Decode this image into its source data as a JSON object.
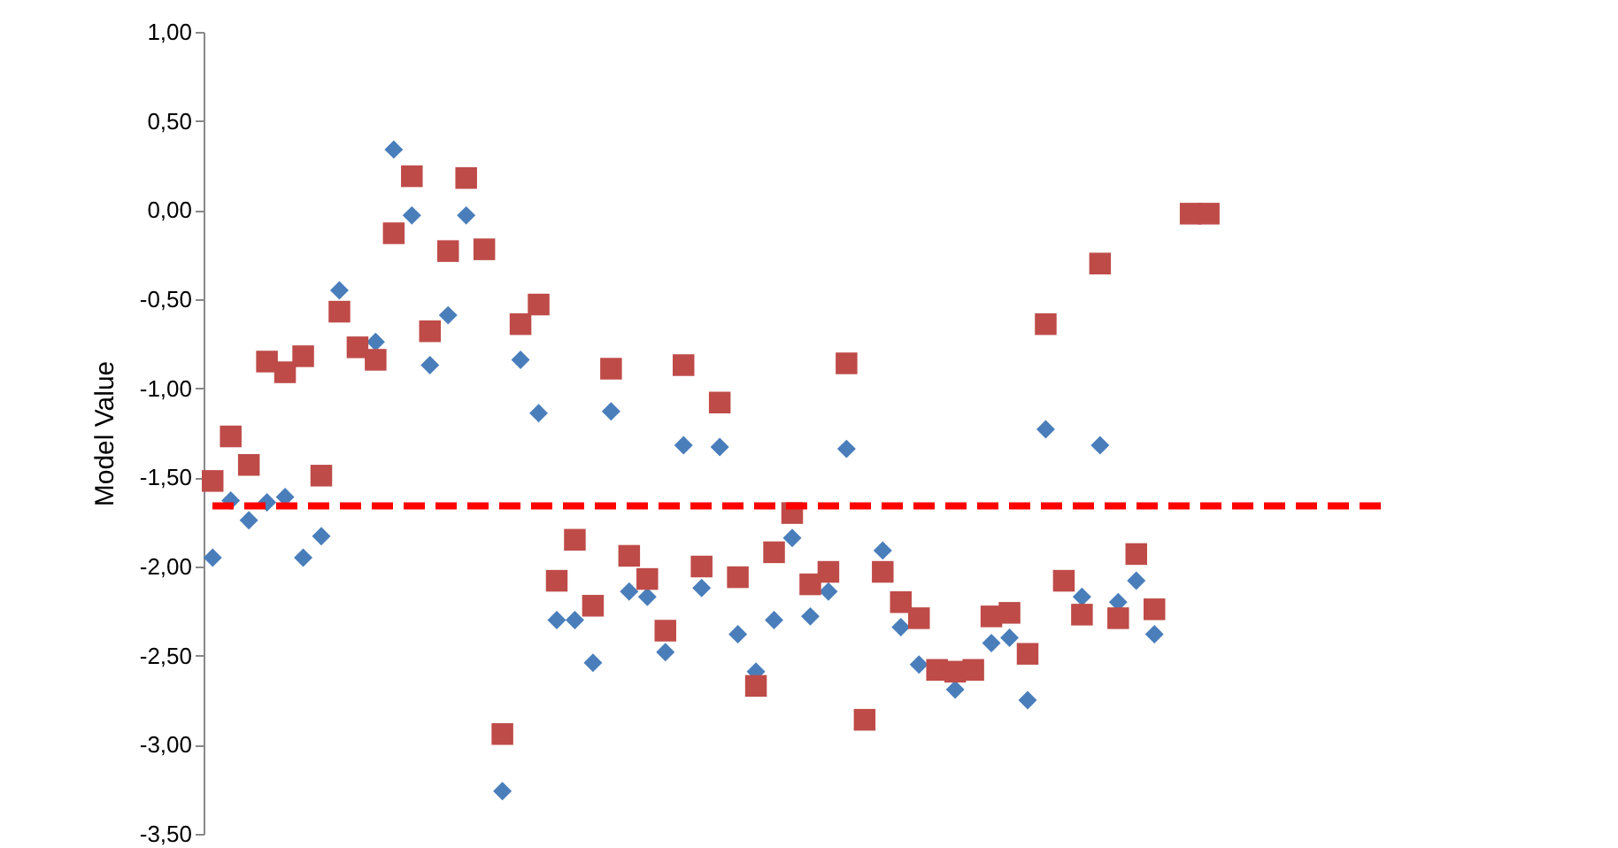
{
  "chart_data": {
    "type": "scatter",
    "ylabel": "Model Value",
    "categories": [
      null,
      null,
      null,
      null,
      null,
      null,
      null,
      null,
      null,
      null,
      null,
      null,
      null,
      null,
      null,
      null,
      null,
      null,
      null,
      null,
      null,
      null,
      null,
      null,
      null,
      null,
      null,
      null,
      null,
      null,
      null,
      null,
      null,
      null,
      null,
      null,
      null,
      null,
      null,
      null,
      null,
      null,
      null,
      null,
      null,
      null,
      null,
      null,
      null,
      null,
      null,
      null,
      null,
      null,
      null,
      null,
      null,
      null,
      null,
      null,
      null,
      null,
      null,
      null,
      null
    ],
    "series": [
      {
        "color": "#4a7ebb",
        "marker": "diamond",
        "values": [
          -1.95,
          -1.63,
          -1.74,
          -1.64,
          -1.61,
          -1.95,
          -1.83,
          -0.45,
          null,
          -0.74,
          0.34,
          -0.03,
          -0.87,
          -0.59,
          -0.03,
          null,
          -3.26,
          -0.84,
          -1.14,
          -2.3,
          -2.3,
          -2.54,
          -1.13,
          -2.14,
          -2.17,
          -2.48,
          -1.32,
          -2.12,
          -1.33,
          -2.38,
          -2.59,
          -2.3,
          -1.84,
          -2.28,
          -2.14,
          -1.34,
          null,
          -1.91,
          -2.34,
          -2.55,
          null,
          -2.69,
          null,
          -2.43,
          -2.4,
          -2.75,
          -1.23,
          null,
          -2.17,
          -1.32,
          -2.2,
          -2.08,
          -2.38,
          null,
          null,
          null,
          null,
          null,
          null,
          null,
          null,
          null,
          null,
          null,
          null
        ]
      },
      {
        "color": "#be4b48",
        "marker": "square",
        "values": [
          -1.52,
          -1.27,
          -1.43,
          -0.85,
          -0.91,
          -0.82,
          -1.49,
          -0.57,
          -0.77,
          -0.84,
          -0.13,
          0.19,
          -0.68,
          -0.23,
          0.18,
          -0.22,
          -2.94,
          -0.64,
          -0.53,
          -2.08,
          -1.85,
          -2.22,
          -0.89,
          -1.94,
          -2.07,
          -2.36,
          -0.87,
          -2.0,
          -1.08,
          -2.06,
          -2.67,
          -1.92,
          -1.7,
          -2.1,
          -2.03,
          -0.86,
          -2.86,
          -2.03,
          -2.2,
          -2.29,
          -2.58,
          -2.59,
          -2.58,
          -2.28,
          -2.26,
          -2.49,
          -0.64,
          -2.08,
          -2.27,
          -0.3,
          -2.29,
          -1.93,
          -2.24,
          null,
          -0.02,
          -0.02,
          null,
          null,
          null,
          null,
          null,
          null,
          null,
          null,
          null
        ]
      }
    ],
    "ylim": [
      -3.5,
      1.0
    ],
    "yticks": [
      {
        "value": -3.5,
        "label": "-3,50"
      },
      {
        "value": -3.0,
        "label": "-3,00"
      },
      {
        "value": -2.5,
        "label": "-2,50"
      },
      {
        "value": -2.0,
        "label": "-2,00"
      },
      {
        "value": -1.5,
        "label": "-1,50"
      },
      {
        "value": -1.0,
        "label": "-1,00"
      },
      {
        "value": -0.5,
        "label": "-0,50"
      },
      {
        "value": 0.0,
        "label": "0,00"
      },
      {
        "value": 0.5,
        "label": "0,50"
      },
      {
        "value": 1.0,
        "label": "1,00"
      }
    ],
    "tick_labels": "y",
    "grid": false,
    "legend": false,
    "ref_lines": [
      {
        "axis": "y",
        "value": -1.66,
        "color": "#ff0000",
        "line_style": "dashed"
      }
    ]
  }
}
